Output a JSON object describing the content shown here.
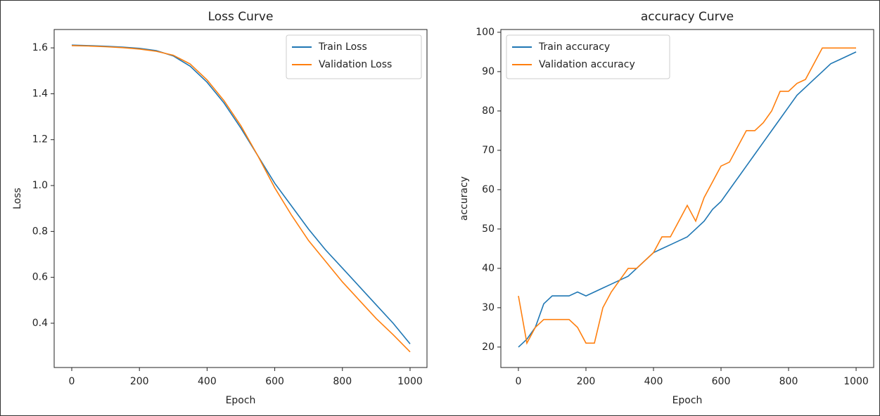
{
  "chart_data": [
    {
      "type": "line",
      "title": "Loss Curve",
      "xlabel": "Epoch",
      "ylabel": "Loss",
      "x": [
        0,
        50,
        100,
        150,
        200,
        250,
        300,
        350,
        400,
        450,
        500,
        550,
        600,
        650,
        700,
        750,
        800,
        850,
        900,
        950,
        1000
      ],
      "series": [
        {
          "name": "Train Loss",
          "color": "#1f77b4",
          "values": [
            1.612,
            1.61,
            1.607,
            1.603,
            1.598,
            1.588,
            1.565,
            1.52,
            1.45,
            1.36,
            1.25,
            1.13,
            1.01,
            0.91,
            0.81,
            0.72,
            0.64,
            0.56,
            0.48,
            0.4,
            0.31
          ]
        },
        {
          "name": "Validation Loss",
          "color": "#ff7f0e",
          "values": [
            1.61,
            1.608,
            1.605,
            1.601,
            1.595,
            1.585,
            1.568,
            1.53,
            1.46,
            1.37,
            1.26,
            1.13,
            0.99,
            0.87,
            0.76,
            0.67,
            0.58,
            0.5,
            0.42,
            0.35,
            0.275
          ]
        }
      ],
      "xlim": [
        -52,
        1050
      ],
      "ylim": [
        0.207,
        1.68
      ],
      "xticks": [
        0,
        200,
        400,
        600,
        800,
        1000
      ],
      "yticks": [
        0.4,
        0.6,
        0.8,
        {
          "value": 1,
          "label": "1.0"
        },
        1.2,
        1.4,
        1.6
      ],
      "legend": "upper right"
    },
    {
      "type": "line",
      "title": "accuracy Curve",
      "xlabel": "Epoch",
      "ylabel": "accuracy",
      "x": [
        0,
        25,
        50,
        75,
        100,
        125,
        150,
        175,
        200,
        225,
        250,
        275,
        300,
        325,
        350,
        375,
        400,
        425,
        450,
        475,
        500,
        525,
        550,
        575,
        600,
        625,
        650,
        675,
        700,
        725,
        750,
        775,
        800,
        825,
        850,
        875,
        900,
        925,
        950,
        975,
        1000
      ],
      "series": [
        {
          "name": "Train accuracy",
          "color": "#1f77b4",
          "values": [
            20,
            22,
            25,
            31,
            33,
            33,
            33,
            34,
            33,
            34,
            35,
            36,
            37,
            38,
            40,
            42,
            44,
            45,
            46,
            47,
            48,
            50,
            52,
            55,
            57,
            60,
            63,
            66,
            69,
            72,
            75,
            78,
            81,
            84,
            86,
            88,
            90,
            92,
            93,
            94,
            95
          ]
        },
        {
          "name": "Validation accuracy",
          "color": "#ff7f0e",
          "values": [
            33,
            21,
            25,
            27,
            27,
            27,
            27,
            25,
            21,
            21,
            30,
            34,
            37,
            40,
            40,
            42,
            44,
            48,
            48,
            52,
            56,
            52,
            58,
            62,
            66,
            67,
            71,
            75,
            75,
            77,
            80,
            85,
            85,
            87,
            88,
            92,
            96,
            96,
            96,
            96,
            96
          ]
        }
      ],
      "xlim": [
        -52,
        1052
      ],
      "ylim": [
        14.8,
        100.7
      ],
      "xticks": [
        0,
        200,
        400,
        600,
        800,
        1000
      ],
      "yticks": [
        20,
        30,
        40,
        50,
        60,
        70,
        80,
        90,
        100
      ],
      "legend": "upper left"
    }
  ]
}
